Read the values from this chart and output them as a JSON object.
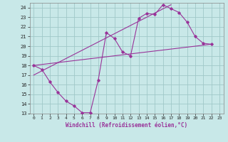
{
  "xlabel": "Windchill (Refroidissement éolien,°C)",
  "bg_color": "#c8e8e8",
  "grid_color": "#a0c8c8",
  "line_color": "#993399",
  "xlim": [
    -0.5,
    23.5
  ],
  "ylim": [
    13,
    24.5
  ],
  "xticks": [
    0,
    1,
    2,
    3,
    4,
    5,
    6,
    7,
    8,
    9,
    10,
    11,
    12,
    13,
    14,
    15,
    16,
    17,
    18,
    19,
    20,
    21,
    22,
    23
  ],
  "yticks": [
    13,
    14,
    15,
    16,
    17,
    18,
    19,
    20,
    21,
    22,
    23,
    24
  ],
  "line1_x": [
    0,
    1,
    2,
    3,
    4,
    5,
    6,
    7,
    8,
    9,
    10,
    11,
    12,
    13,
    14,
    15,
    16,
    17,
    18,
    19,
    20,
    21,
    22
  ],
  "line1_y": [
    18.0,
    17.6,
    16.3,
    15.2,
    14.3,
    13.8,
    13.1,
    13.1,
    16.5,
    21.4,
    20.8,
    19.4,
    19.0,
    22.9,
    23.4,
    23.3,
    24.3,
    23.9,
    23.5,
    22.5,
    21.0,
    20.3,
    20.2
  ],
  "line2_x": [
    0,
    22
  ],
  "line2_y": [
    18.0,
    20.2
  ],
  "line3_x": [
    0,
    17
  ],
  "line3_y": [
    17.0,
    24.3
  ]
}
